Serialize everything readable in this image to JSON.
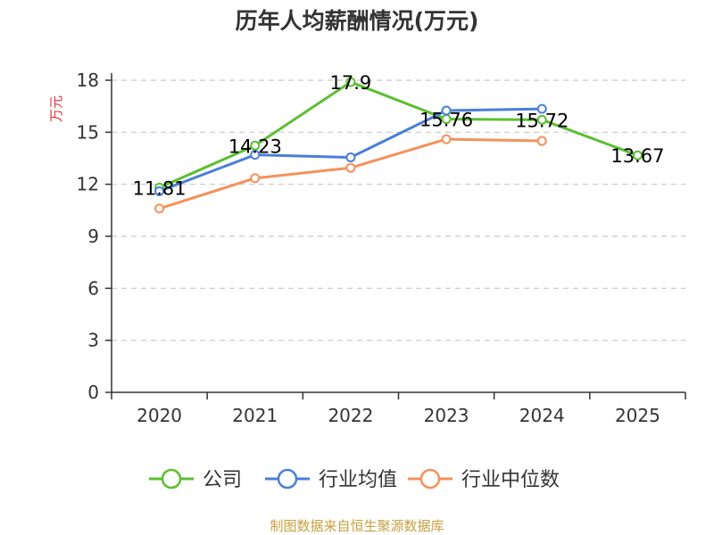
{
  "chart_data": {
    "type": "line",
    "title": "历年人均薪酬情况(万元)",
    "ylabel": "万元",
    "xlabel": "",
    "categories": [
      "2020",
      "2021",
      "2022",
      "2023",
      "2024",
      "2025"
    ],
    "ylim": [
      0,
      18
    ],
    "yticks": [
      0,
      3,
      6,
      9,
      12,
      15,
      18
    ],
    "grid": true,
    "legend_position": "bottom",
    "series": [
      {
        "name": "公司",
        "color": "#5cbf32",
        "values": [
          11.81,
          14.23,
          17.9,
          15.76,
          15.72,
          13.67
        ],
        "labels": [
          "11.81",
          "14.23",
          "17.9",
          "15.76",
          "15.72",
          "13.67"
        ]
      },
      {
        "name": "行业均值",
        "color": "#4a7fd8",
        "values": [
          11.6,
          13.7,
          13.55,
          16.25,
          16.35,
          null
        ]
      },
      {
        "name": "行业中位数",
        "color": "#f5915a",
        "values": [
          10.6,
          12.35,
          12.95,
          14.6,
          14.5,
          null
        ]
      }
    ],
    "source_note": "制图数据来自恒生聚源数据库"
  },
  "colors": {
    "axis": "#333333",
    "grid": "#c8c8c8",
    "unit_label": "#e03030",
    "source_note": "#c8a040"
  }
}
